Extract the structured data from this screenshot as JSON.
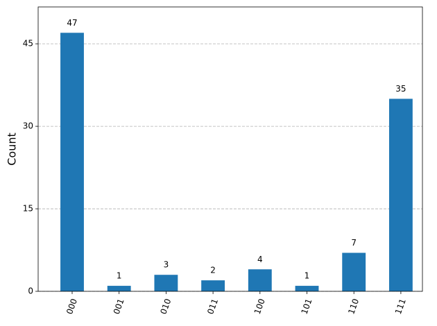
{
  "chart_data": {
    "type": "bar",
    "y_label": "Count",
    "categories": [
      "000",
      "001",
      "010",
      "011",
      "100",
      "101",
      "110",
      "111"
    ],
    "values": [
      47,
      1,
      3,
      2,
      4,
      1,
      7,
      35
    ],
    "color": "#1f77b4",
    "ylim": [
      0,
      51.7
    ],
    "yticks": [
      0,
      15,
      30,
      45
    ],
    "grid": true
  }
}
